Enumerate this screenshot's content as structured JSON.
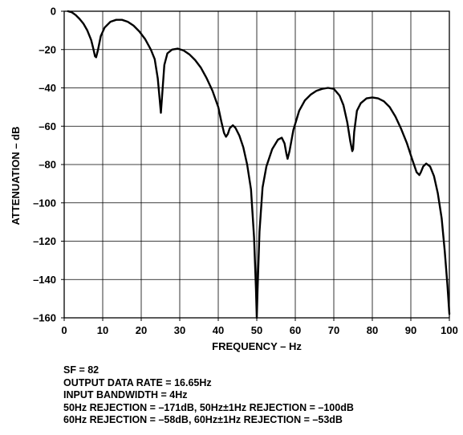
{
  "chart_data": {
    "type": "line",
    "title": "",
    "xlabel": "FREQUENCY – Hz",
    "ylabel": "ATTENUATION – dB",
    "xlim": [
      0,
      100
    ],
    "ylim": [
      -160,
      0
    ],
    "xticks": [
      0,
      10,
      20,
      30,
      40,
      50,
      60,
      70,
      80,
      90,
      100
    ],
    "yticks": [
      0,
      -20,
      -40,
      -60,
      -80,
      -100,
      -120,
      -140,
      -160
    ],
    "xtick_labels": [
      "0",
      "10",
      "20",
      "30",
      "40",
      "50",
      "60",
      "70",
      "80",
      "90",
      "100"
    ],
    "ytick_labels": [
      "0",
      "–20",
      "–40",
      "–60",
      "–80",
      "–100",
      "–120",
      "–140",
      "–160"
    ],
    "grid": true,
    "series": [
      {
        "color": "#000000",
        "x": [
          1,
          2,
          3,
          4,
          5,
          6,
          7,
          7.5,
          8,
          8.3,
          8.8,
          9.5,
          10.5,
          12,
          13.5,
          15,
          16.5,
          18,
          19.5,
          21,
          22.5,
          23.5,
          24.3,
          24.8,
          25.1,
          25.5,
          26,
          26.8,
          28,
          29.5,
          31,
          32.5,
          34,
          35.5,
          37,
          38.5,
          40,
          40.8,
          41.5,
          42,
          42.5,
          43,
          43.8,
          44.5,
          45.5,
          46.5,
          47.5,
          48.5,
          49.3,
          49.8,
          50,
          50.2,
          50.7,
          51.5,
          52.5,
          54,
          55.5,
          56.5,
          57.2,
          57.7,
          58,
          58.5,
          59.5,
          61,
          62.5,
          64,
          65.5,
          67,
          68.5,
          70,
          71.5,
          72.5,
          73.5,
          74.3,
          74.8,
          75,
          75.3,
          76,
          77,
          78.5,
          80,
          81.5,
          83,
          84.5,
          86,
          87.5,
          89,
          90.3,
          91.5,
          92.2,
          92.6,
          93.2,
          94,
          95,
          96,
          97,
          98,
          98.8,
          99.5,
          100
        ],
        "y": [
          0,
          -0.6,
          -2,
          -4,
          -6.5,
          -10,
          -15,
          -19,
          -23.5,
          -24,
          -20,
          -13,
          -8.5,
          -5.5,
          -4.5,
          -4.5,
          -5.5,
          -7.5,
          -10.5,
          -14.5,
          -20,
          -25,
          -35,
          -46,
          -53,
          -42,
          -28,
          -22,
          -20,
          -19.5,
          -20.5,
          -22.5,
          -25.5,
          -29.5,
          -35,
          -41.5,
          -50,
          -57.5,
          -63.5,
          -65.5,
          -64,
          -61,
          -59.5,
          -61,
          -65,
          -71,
          -80,
          -93,
          -118,
          -145,
          -160,
          -145,
          -115,
          -92,
          -81,
          -72,
          -67,
          -66,
          -69,
          -74.5,
          -77,
          -73,
          -62,
          -52,
          -46.5,
          -43.5,
          -41.5,
          -40.5,
          -40,
          -40.5,
          -44,
          -49,
          -58,
          -68,
          -73,
          -72,
          -63,
          -52,
          -48,
          -45.5,
          -45,
          -45.5,
          -47,
          -50,
          -55,
          -61.5,
          -69,
          -77,
          -84,
          -85.5,
          -84,
          -81,
          -79.5,
          -81,
          -86,
          -95,
          -108,
          -125,
          -143,
          -158
        ]
      }
    ]
  },
  "notes": [
    "SF = 82",
    "OUTPUT DATA RATE = 16.65Hz",
    "INPUT BANDWIDTH = 4Hz",
    "50Hz REJECTION = –171dB, 50Hz±1Hz REJECTION = –100dB",
    "60Hz REJECTION = –58dB, 60Hz±1Hz REJECTION = –53dB"
  ]
}
